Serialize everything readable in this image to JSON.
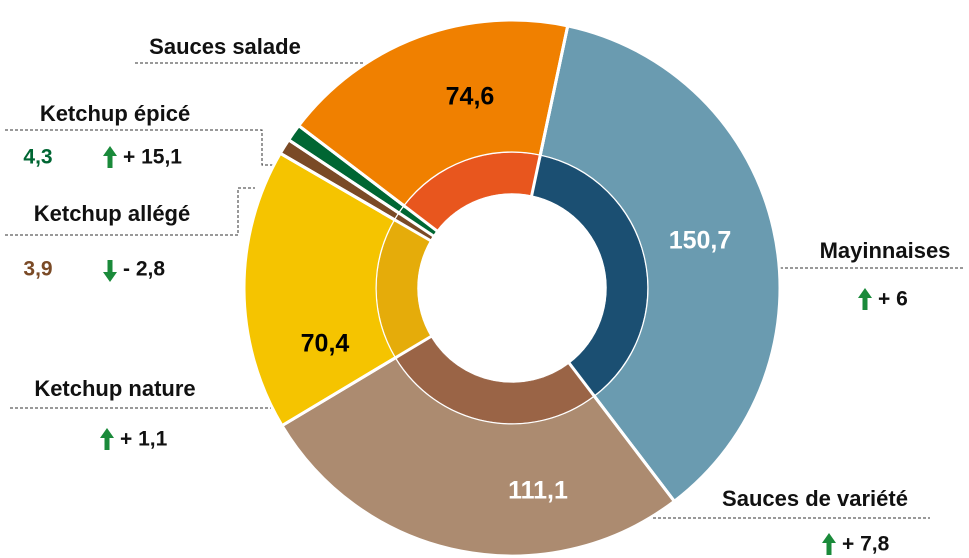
{
  "chart_data": {
    "type": "donut",
    "categories": [
      "Mayinnaises",
      "Sauces de variété",
      "Ketchup nature",
      "Ketchup allégé",
      "Ketchup épicé",
      "Sauces salade"
    ],
    "values": [
      150.7,
      111.1,
      70.4,
      3.9,
      4.3,
      74.6
    ],
    "value_labels": [
      "150,7",
      "111,1",
      "70,4",
      "3,9",
      "4,3",
      "74,6"
    ],
    "colors": [
      "#6a9bb0",
      "#ac8b70",
      "#f5c400",
      "#7a4a26",
      "#006633",
      "#f08000"
    ],
    "inner_colors": [
      "#1b4f72",
      "#9a6446",
      "#e5ac0a",
      "#7a4a26",
      "#006633",
      "#e8561e"
    ],
    "changes": [
      6,
      7.8,
      1.1,
      -2.8,
      15.1,
      null
    ],
    "change_labels": [
      "+ 6",
      "+ 7,8",
      "+ 1,1",
      "- 2,8",
      "+ 15,1",
      null
    ]
  }
}
